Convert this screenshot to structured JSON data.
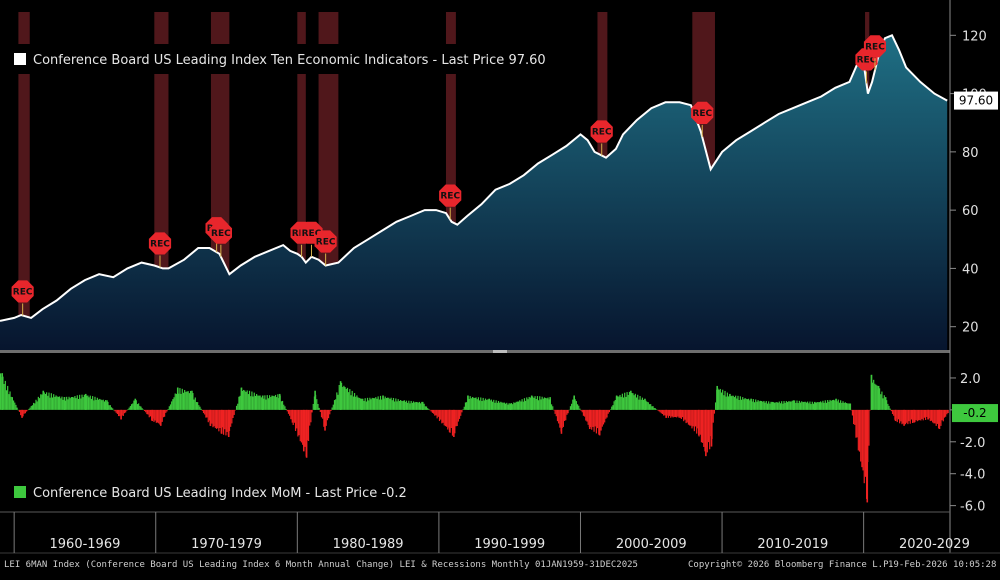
{
  "chart_data": [
    {
      "type": "area",
      "title": "Conference Board US Leading Index Ten Economic Indicators - Last Price 97.60",
      "legend_label": "Conference Board US Leading Index Ten Economic Indicators - Last Price 97.60",
      "last_price": "97.60",
      "ylim": [
        12,
        128
      ],
      "yticks": [
        20,
        40,
        60,
        80,
        100,
        120
      ],
      "x_range": [
        1959.0,
        2026.1
      ],
      "series": [
        {
          "name": "LEI",
          "x": [
            1959.0,
            1960.0,
            1960.5,
            1961.2,
            1962.0,
            1963.0,
            1964.0,
            1965.0,
            1966.0,
            1967.0,
            1968.0,
            1969.0,
            1969.9,
            1970.5,
            1970.9,
            1972.0,
            1973.0,
            1973.8,
            1974.5,
            1975.2,
            1976.0,
            1977.0,
            1978.0,
            1979.0,
            1979.5,
            1980.0,
            1980.3,
            1980.6,
            1981.0,
            1981.5,
            1982.0,
            1982.9,
            1984.0,
            1985.0,
            1986.0,
            1987.0,
            1988.0,
            1989.0,
            1989.8,
            1990.5,
            1990.9,
            1991.3,
            1992.0,
            1993.0,
            1994.0,
            1995.0,
            1996.0,
            1997.0,
            1998.0,
            1999.0,
            2000.0,
            2000.5,
            2001.0,
            2001.8,
            2002.5,
            2003.0,
            2004.0,
            2005.0,
            2006.0,
            2007.0,
            2007.8,
            2008.5,
            2009.2,
            2010.0,
            2011.0,
            2012.0,
            2013.0,
            2014.0,
            2015.0,
            2016.0,
            2017.0,
            2018.0,
            2019.0,
            2019.9,
            2020.3,
            2020.6,
            2021.0,
            2021.5,
            2022.0,
            2022.5,
            2023.0,
            2024.0,
            2025.0,
            2025.9
          ],
          "values": [
            22,
            23,
            24,
            23,
            26,
            29,
            33,
            36,
            38,
            37,
            40,
            42,
            41,
            40,
            40,
            43,
            47,
            47,
            45,
            38,
            41,
            44,
            46,
            48,
            46,
            45,
            44,
            42,
            44,
            43,
            41,
            42,
            47,
            50,
            53,
            56,
            58,
            60,
            60,
            59,
            56,
            55,
            58,
            62,
            67,
            69,
            72,
            76,
            79,
            82,
            86,
            84,
            80,
            78,
            81,
            86,
            91,
            95,
            97,
            97,
            96,
            87,
            74,
            80,
            84,
            87,
            90,
            93,
            95,
            97,
            99,
            102,
            104,
            114,
            100,
            104,
            112,
            119,
            120,
            115,
            109,
            104,
            100,
            97.6
          ]
        }
      ],
      "recessions": [
        [
          1960.3,
          1961.1
        ],
        [
          1969.9,
          1970.9
        ],
        [
          1973.9,
          1975.2
        ],
        [
          1980.0,
          1980.6
        ],
        [
          1981.5,
          1982.9
        ],
        [
          1990.5,
          1991.2
        ],
        [
          2001.2,
          2001.9
        ],
        [
          2007.9,
          2009.5
        ],
        [
          2020.1,
          2020.4
        ]
      ],
      "rec_marker_label": "REC",
      "rec_markers": [
        1960.6,
        1970.3,
        1974.3,
        1974.6,
        1980.3,
        1981.0,
        1982.0,
        1990.8,
        2001.5,
        2008.6,
        2020.2,
        2020.8
      ]
    },
    {
      "type": "bar",
      "title": "Conference Board US Leading Index MoM - Last Price -0.2",
      "legend_label": "Conference Board US Leading Index MoM - Last Price -0.2",
      "last_price": "-0.2",
      "ylim": [
        -6.4,
        3.0
      ],
      "yticks": [
        "2.0",
        "0.0",
        "-2.0",
        "-4.0",
        "-6.0"
      ],
      "ytick_values": [
        2.0,
        0.0,
        -2.0,
        -4.0,
        -6.0
      ],
      "sample": [
        {
          "x": 1959.1,
          "y": 2.3
        },
        {
          "x": 1960.5,
          "y": -0.5
        },
        {
          "x": 1962.0,
          "y": 1.2
        },
        {
          "x": 1963.5,
          "y": 0.8
        },
        {
          "x": 1965.0,
          "y": 1.0
        },
        {
          "x": 1966.5,
          "y": 0.6
        },
        {
          "x": 1967.5,
          "y": -0.6
        },
        {
          "x": 1968.5,
          "y": 0.7
        },
        {
          "x": 1969.7,
          "y": -0.7
        },
        {
          "x": 1970.3,
          "y": -1.0
        },
        {
          "x": 1971.5,
          "y": 1.4
        },
        {
          "x": 1972.5,
          "y": 1.2
        },
        {
          "x": 1973.8,
          "y": -1.0
        },
        {
          "x": 1974.6,
          "y": -1.5
        },
        {
          "x": 1975.1,
          "y": -1.7
        },
        {
          "x": 1976.0,
          "y": 1.4
        },
        {
          "x": 1977.5,
          "y": 0.9
        },
        {
          "x": 1978.7,
          "y": 1.0
        },
        {
          "x": 1979.6,
          "y": -0.8
        },
        {
          "x": 1980.4,
          "y": -2.6
        },
        {
          "x": 1980.6,
          "y": -3.0
        },
        {
          "x": 1981.2,
          "y": 1.2
        },
        {
          "x": 1981.9,
          "y": -1.3
        },
        {
          "x": 1983.0,
          "y": 1.8
        },
        {
          "x": 1984.5,
          "y": 0.7
        },
        {
          "x": 1986.0,
          "y": 0.9
        },
        {
          "x": 1987.5,
          "y": 0.6
        },
        {
          "x": 1988.8,
          "y": 0.5
        },
        {
          "x": 1990.7,
          "y": -1.4
        },
        {
          "x": 1991.0,
          "y": -1.7
        },
        {
          "x": 1992.0,
          "y": 0.9
        },
        {
          "x": 1993.5,
          "y": 0.7
        },
        {
          "x": 1995.0,
          "y": 0.4
        },
        {
          "x": 1996.5,
          "y": 0.9
        },
        {
          "x": 1997.8,
          "y": 0.8
        },
        {
          "x": 1998.6,
          "y": -1.5
        },
        {
          "x": 1999.5,
          "y": 0.9
        },
        {
          "x": 2000.6,
          "y": -1.2
        },
        {
          "x": 2001.3,
          "y": -1.6
        },
        {
          "x": 2002.5,
          "y": 0.9
        },
        {
          "x": 2003.5,
          "y": 1.2
        },
        {
          "x": 2004.5,
          "y": 0.7
        },
        {
          "x": 2006.0,
          "y": -0.5
        },
        {
          "x": 2007.0,
          "y": -0.5
        },
        {
          "x": 2008.3,
          "y": -1.6
        },
        {
          "x": 2008.8,
          "y": -2.9
        },
        {
          "x": 2009.2,
          "y": -2.3
        },
        {
          "x": 2009.6,
          "y": 1.5
        },
        {
          "x": 2010.5,
          "y": 1.0
        },
        {
          "x": 2012.0,
          "y": 0.7
        },
        {
          "x": 2013.5,
          "y": 0.5
        },
        {
          "x": 2015.0,
          "y": 0.6
        },
        {
          "x": 2016.5,
          "y": 0.5
        },
        {
          "x": 2018.0,
          "y": 0.7
        },
        {
          "x": 2019.0,
          "y": 0.4
        },
        {
          "x": 2020.2,
          "y": -5.8
        },
        {
          "x": 2020.5,
          "y": 2.2
        },
        {
          "x": 2021.0,
          "y": 1.5
        },
        {
          "x": 2021.5,
          "y": 0.8
        },
        {
          "x": 2022.2,
          "y": -0.7
        },
        {
          "x": 2022.8,
          "y": -1.0
        },
        {
          "x": 2023.5,
          "y": -0.8
        },
        {
          "x": 2024.5,
          "y": -0.6
        },
        {
          "x": 2025.3,
          "y": -1.2
        },
        {
          "x": 2025.9,
          "y": -0.2
        }
      ]
    }
  ],
  "decade_labels": [
    "1960-1969",
    "1970-1979",
    "1980-1989",
    "1990-1999",
    "2000-2009",
    "2010-2019",
    "2020-2029"
  ],
  "decade_centers": [
    1965,
    1975,
    1985,
    1995,
    2005,
    2015,
    2025
  ],
  "decade_boundaries": [
    1960,
    1970,
    1980,
    1990,
    2000,
    2010,
    2020
  ],
  "footer": {
    "left": "LEI 6MAN Index (Conference Board US Leading Index 6 Month Annual Change) LEI & Recessions Monthly 01JAN1959-31DEC2025",
    "copyright": "Copyright© 2026 Bloomberg Finance L.P.",
    "timestamp": "19-Feb-2026 10:05:28"
  },
  "colors": {
    "line": "#ffffff",
    "area_top": "#1f6f84",
    "area_bottom": "#07152e",
    "recession_band": "#6b1f24",
    "rec_marker": "#e8262c",
    "bar_up": "#3ec83e",
    "bar_down": "#ee2222",
    "legend_top": "#ffffff",
    "legend_bottom": "#3ec83e"
  }
}
